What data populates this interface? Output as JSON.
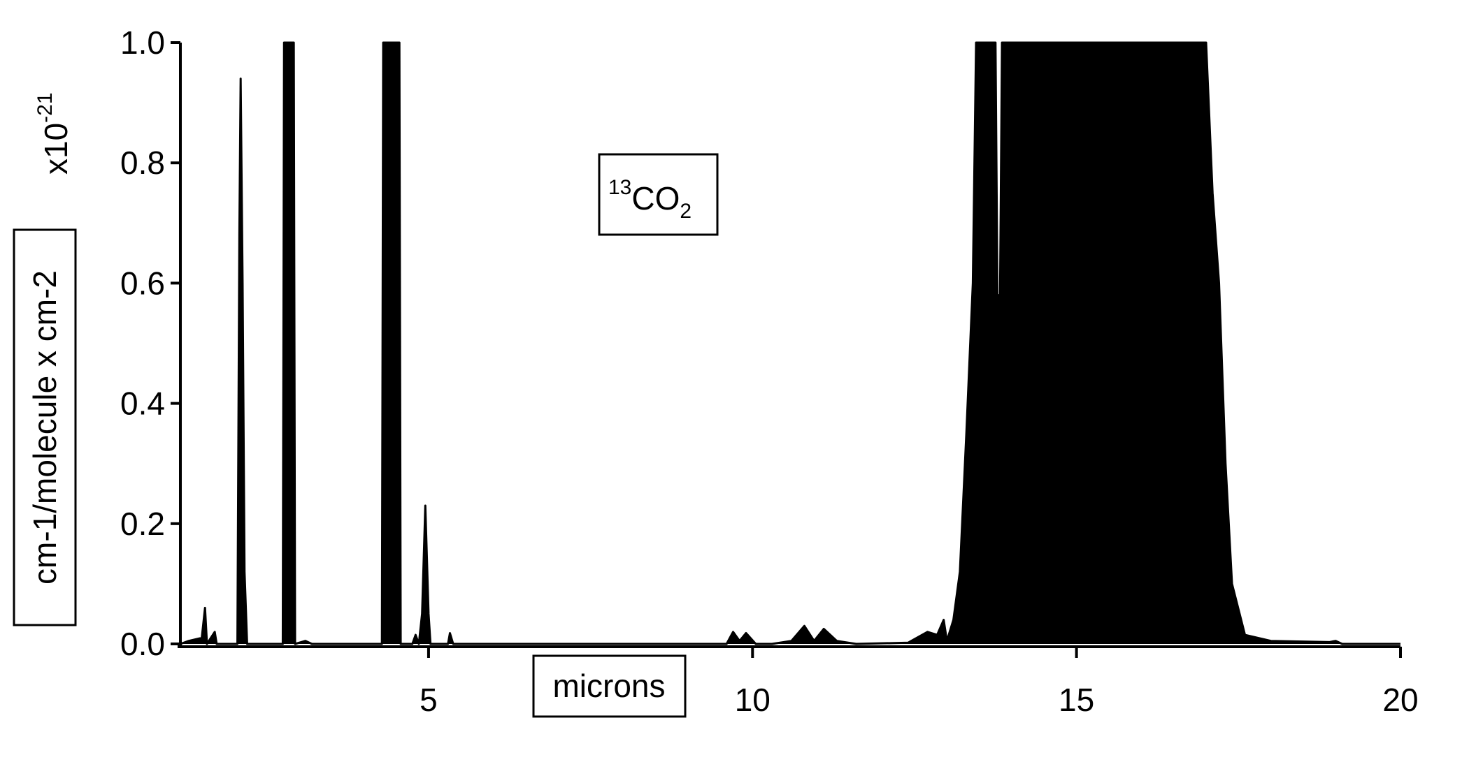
{
  "chart_data": {
    "type": "area",
    "annotation": {
      "isotope": "13",
      "molecule": "CO",
      "subscript": "2"
    },
    "y_label": "cm-1/molecule x cm-2",
    "y_multiplier": {
      "base": "x10",
      "exponent": "-21"
    },
    "x_label": "microns",
    "color": "#000000",
    "x": [
      1.17,
      1.3,
      1.5,
      1.55,
      1.58,
      1.7,
      1.73,
      2.05,
      2.08,
      2.1,
      2.13,
      2.16,
      2.2,
      2.75,
      2.77,
      2.92,
      2.94,
      3.1,
      3.2,
      4.28,
      4.3,
      4.55,
      4.57,
      4.75,
      4.8,
      4.85,
      4.9,
      4.95,
      5.0,
      5.03,
      5.3,
      5.33,
      5.38,
      9.6,
      9.7,
      9.8,
      9.9,
      10.05,
      10.3,
      10.6,
      10.8,
      10.95,
      11.1,
      11.3,
      11.6,
      12.4,
      12.7,
      12.85,
      12.95,
      13.0,
      13.1,
      13.2,
      13.3,
      13.4,
      13.45,
      13.75,
      13.78,
      13.82,
      13.85,
      17.0,
      17.1,
      17.2,
      17.3,
      17.4,
      17.6,
      18.0,
      18.9,
      19.0,
      19.1,
      20.0
    ],
    "y": [
      0,
      0.005,
      0.01,
      0.06,
      0,
      0.02,
      0,
      0,
      0.68,
      0.94,
      0.6,
      0.12,
      0,
      0,
      1.0,
      1.0,
      0,
      0.005,
      0,
      0,
      1.0,
      1.0,
      0,
      0,
      0.015,
      0,
      0.05,
      0.23,
      0.05,
      0,
      0,
      0.018,
      0,
      0,
      0.02,
      0.005,
      0.018,
      0,
      0,
      0.005,
      0.03,
      0.005,
      0.025,
      0.005,
      0,
      0.002,
      0.02,
      0.015,
      0.04,
      0.005,
      0.04,
      0.12,
      0.35,
      0.6,
      1.0,
      1.0,
      0.58,
      0.58,
      1.0,
      1.0,
      0.75,
      0.6,
      0.3,
      0.1,
      0.015,
      0.005,
      0.003,
      0.005,
      0,
      0
    ],
    "xlim": [
      1.17,
      20
    ],
    "ylim": [
      0,
      1
    ],
    "xticks": [
      5,
      10,
      15,
      20
    ],
    "yticks": [
      {
        "value": 0,
        "label": "0.0"
      },
      {
        "value": 0.2,
        "label": "0.2"
      },
      {
        "value": 0.4,
        "label": "0.4"
      },
      {
        "value": 0.6,
        "label": "0.6"
      },
      {
        "value": 0.8,
        "label": "0.8"
      },
      {
        "value": 1,
        "label": "1.0"
      }
    ],
    "grid": false
  }
}
